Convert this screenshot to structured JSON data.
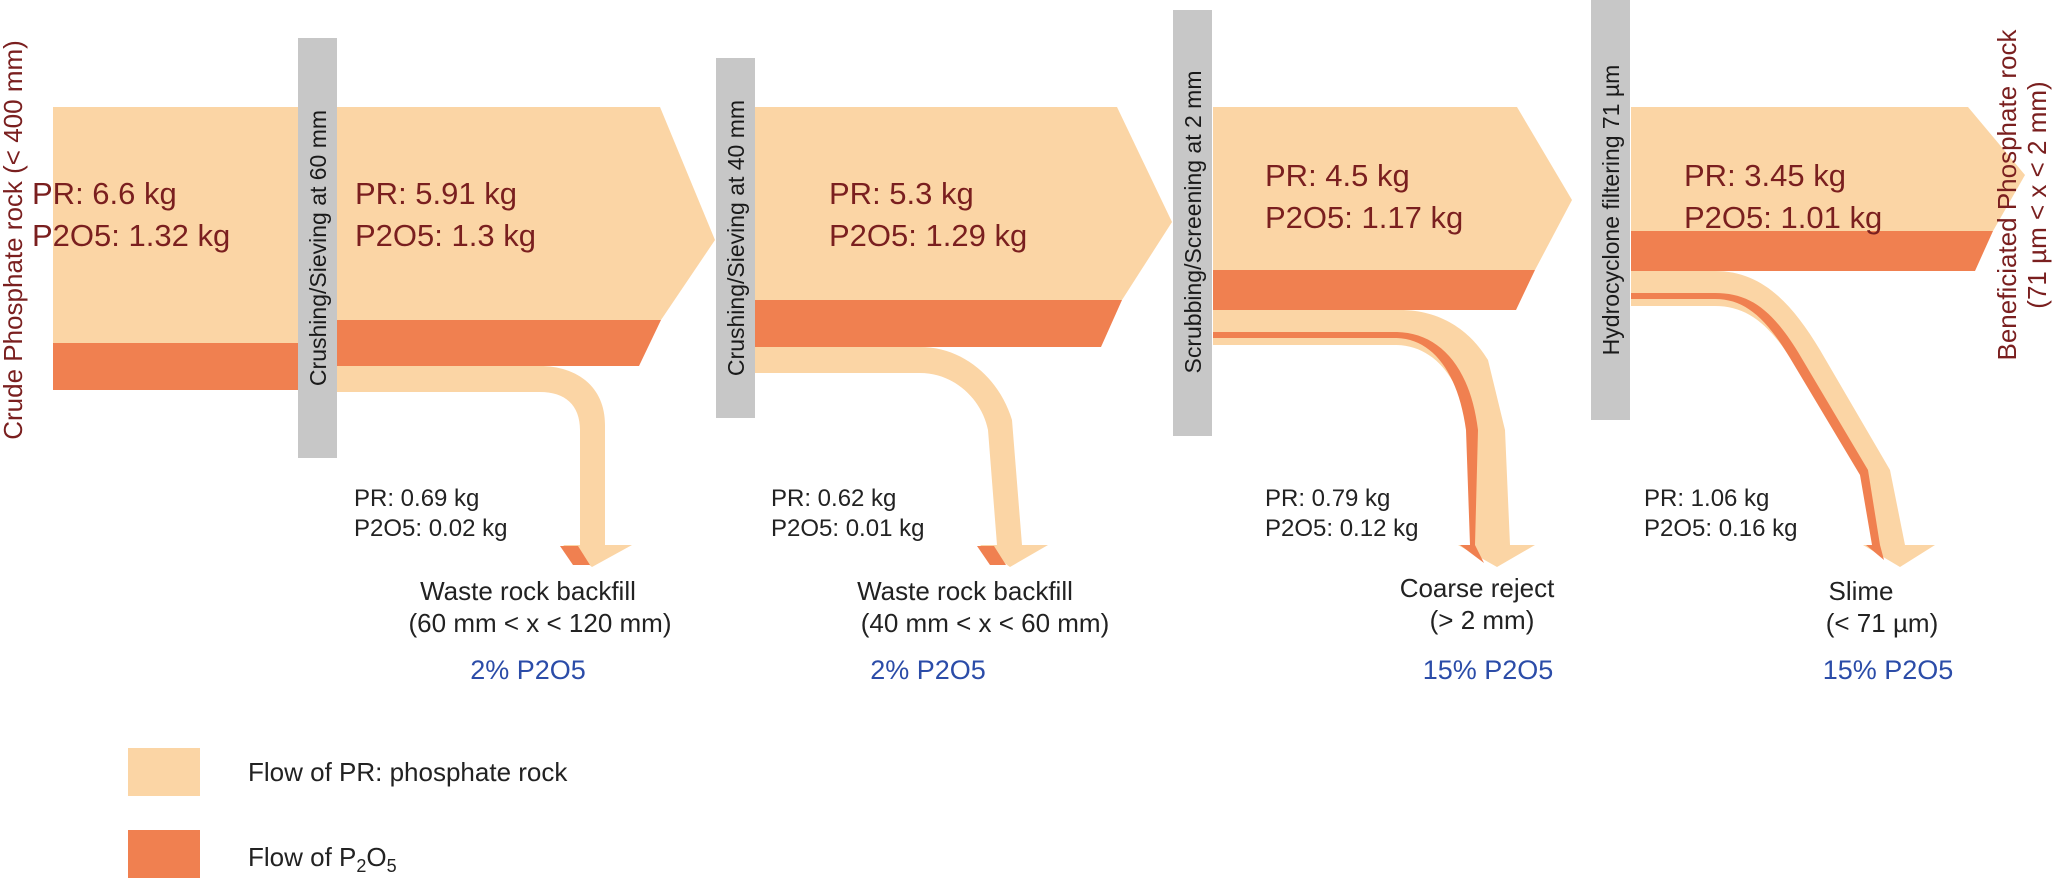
{
  "colors": {
    "pr": "#fbd5a5",
    "p2o5": "#f08050",
    "process": "#c7c7c7",
    "label": "#7a1f1f",
    "pct": "#2b4ca8"
  },
  "input": {
    "title": "Crude Phosphate rock (< 400 mm)",
    "pr": "PR: 6.6 kg",
    "p2o5": "P2O5: 1.32 kg"
  },
  "output": {
    "title_line1": "Beneficiated Phosphate rock",
    "title_line2": "(71 µm < x < 2 mm)"
  },
  "stages": [
    {
      "process": "Crushing/Sieving at 60 mm",
      "flow_pr": "PR: 5.91 kg",
      "flow_p2o5": "P2O5: 1.3 kg",
      "out_pr": "PR: 0.69 kg",
      "out_p2o5": "P2O5: 0.02 kg",
      "dest_line1": "Waste rock backfill",
      "dest_line2": "(60 mm < x < 120 mm)",
      "pct": "2% P2O5"
    },
    {
      "process": "Crushing/Sieving at 40 mm",
      "flow_pr": "PR: 5.3 kg",
      "flow_p2o5": "P2O5: 1.29 kg",
      "out_pr": "PR: 0.62 kg",
      "out_p2o5": "P2O5: 0.01 kg",
      "dest_line1": "Waste rock backfill",
      "dest_line2": "(40 mm < x < 60 mm)",
      "pct": "2% P2O5"
    },
    {
      "process": "Scrubbing/Screening at 2 mm",
      "flow_pr": "PR: 4.5 kg",
      "flow_p2o5": "P2O5: 1.17 kg",
      "out_pr": "PR: 0.79 kg",
      "out_p2o5": "P2O5: 0.12 kg",
      "dest_line1": "Coarse reject",
      "dest_line2": "(> 2 mm)",
      "pct": "15% P2O5"
    },
    {
      "process": "Hydrocyclone filtering 71 µm",
      "flow_pr": "PR: 3.45 kg",
      "flow_p2o5": "P2O5: 1.01 kg",
      "out_pr": "PR: 1.06 kg",
      "out_p2o5": "P2O5: 0.16 kg",
      "dest_line1": "Slime",
      "dest_line2": "(< 71 µm)",
      "pct": "15% P2O5"
    }
  ],
  "legend": {
    "pr": "Flow of PR: phosphate rock",
    "p2o5_prefix": "Flow of P",
    "p2o5_sub1": "2",
    "p2o5_mid": "O",
    "p2o5_sub2": "5"
  }
}
